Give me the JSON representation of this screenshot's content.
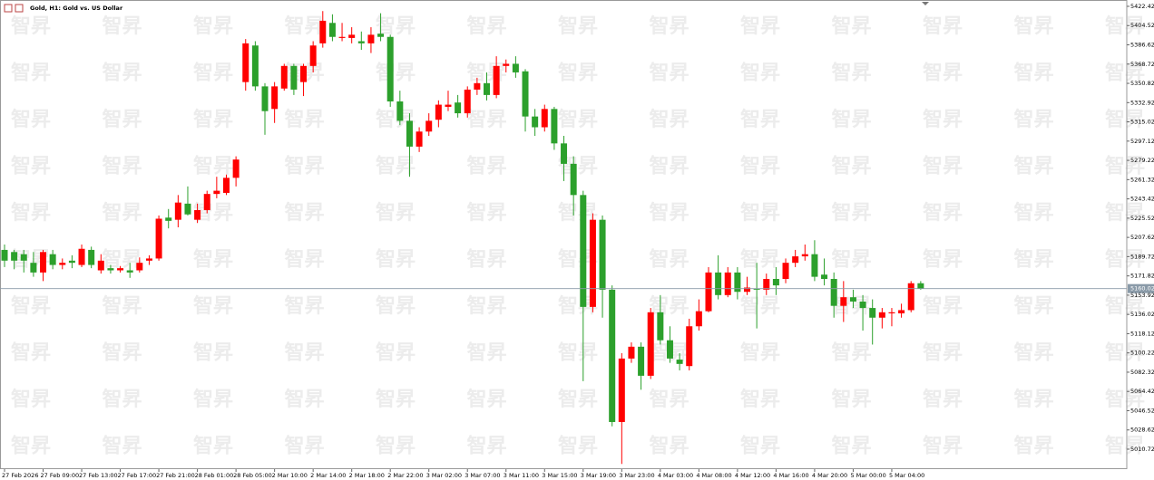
{
  "chart_data": {
    "type": "candlestick",
    "title": "Gold, H1:  Gold vs. US Dollar",
    "watermark": "智昇",
    "categories": [
      "27 Feb 2026",
      null,
      null,
      null,
      "27 Feb 09:00",
      null,
      null,
      null,
      "27 Feb 13:00",
      null,
      null,
      null,
      "27 Feb 17:00",
      null,
      null,
      null,
      "27 Feb 21:00",
      null,
      null,
      null,
      "28 Feb 01:00",
      null,
      null,
      null,
      "28 Feb 05:00",
      null,
      null,
      null,
      "2 Mar 10:00",
      null,
      null,
      null,
      "2 Mar 14:00",
      null,
      null,
      null,
      "2 Mar 18:00",
      null,
      null,
      null,
      "2 Mar 22:00",
      null,
      null,
      null,
      "3 Mar 02:00",
      null,
      null,
      null,
      "3 Mar 07:00",
      null,
      null,
      null,
      "3 Mar 11:00",
      null,
      null,
      null,
      "3 Mar 15:00",
      null,
      null,
      null,
      "3 Mar 19:00",
      null,
      null,
      null,
      "3 Mar 23:00",
      null,
      null,
      null,
      "4 Mar 03:00",
      null,
      null,
      null,
      "4 Mar 08:00",
      null,
      null,
      null,
      "4 Mar 12:00",
      null,
      null,
      null,
      "4 Mar 16:00",
      null,
      null,
      null,
      "4 Mar 20:00",
      null,
      null,
      null,
      "5 Mar 00:00",
      null,
      null,
      null,
      "5 Mar 04:00",
      null,
      null,
      null
    ],
    "open": [
      5196,
      5194,
      5192,
      5184,
      5175,
      5192,
      5182,
      5186,
      5182,
      5196,
      5177,
      5179,
      5177,
      5177,
      5177,
      5186,
      5188,
      5226,
      5224,
      5239,
      5224,
      5233,
      5248,
      5249,
      5263,
      5352,
      5386,
      5348,
      5327,
      5346,
      5367,
      5352,
      5367,
      5388,
      5407,
      5393,
      5393,
      5390,
      5388,
      5397,
      5394,
      5334,
      5316,
      5292,
      5306,
      5317,
      5329,
      5333,
      5323,
      5345,
      5351,
      5340,
      5367,
      5369,
      5362,
      5320,
      5310,
      5327,
      5295,
      5276,
      5247,
      5143,
      5224,
      5159,
      5036,
      5095,
      5106,
      5079,
      5138,
      5112,
      5094,
      5088,
      5125,
      5139,
      5175,
      5154,
      5175,
      5157,
      5160,
      5159,
      5169,
      5169,
      5184,
      5190,
      5192,
      5173,
      5169,
      5144,
      5152,
      5148,
      5142,
      5133,
      5137,
      5137,
      5140,
      5165
    ],
    "high": [
      5201,
      5196,
      5196,
      5194,
      5196,
      5196,
      5188,
      5191,
      5201,
      5199,
      5192,
      5182,
      5181,
      5184,
      5189,
      5191,
      5228,
      5234,
      5247,
      5255,
      5239,
      5251,
      5264,
      5266,
      5283,
      5392,
      5390,
      5351,
      5352,
      5369,
      5369,
      5369,
      5390,
      5418,
      5415,
      5407,
      5403,
      5399,
      5403,
      5416,
      5396,
      5344,
      5323,
      5310,
      5323,
      5335,
      5344,
      5340,
      5348,
      5356,
      5361,
      5376,
      5373,
      5376,
      5364,
      5327,
      5331,
      5329,
      5302,
      5283,
      5251,
      5230,
      5228,
      5163,
      5100,
      5110,
      5110,
      5142,
      5154,
      5125,
      5100,
      5132,
      5150,
      5180,
      5191,
      5180,
      5180,
      5171,
      5184,
      5174,
      5180,
      5188,
      5196,
      5201,
      5205,
      5188,
      5175,
      5167,
      5159,
      5154,
      5150,
      5142,
      5142,
      5146,
      5167,
      5167
    ],
    "low": [
      5180,
      5178,
      5175,
      5171,
      5167,
      5178,
      5178,
      5179,
      5180,
      5179,
      5174,
      5174,
      5175,
      5170,
      5175,
      5182,
      5186,
      5216,
      5217,
      5228,
      5221,
      5230,
      5244,
      5247,
      5255,
      5344,
      5344,
      5303,
      5314,
      5344,
      5340,
      5339,
      5361,
      5384,
      5390,
      5390,
      5388,
      5382,
      5379,
      5390,
      5329,
      5312,
      5264,
      5287,
      5302,
      5310,
      5325,
      5319,
      5319,
      5340,
      5335,
      5337,
      5361,
      5356,
      5306,
      5302,
      5306,
      5289,
      5260,
      5228,
      5074,
      5138,
      5133,
      5032,
      4997,
      5091,
      5066,
      5076,
      5108,
      5091,
      5084,
      5084,
      5121,
      5138,
      5150,
      5152,
      5150,
      5154,
      5123,
      5154,
      5154,
      5165,
      5180,
      5186,
      5167,
      5163,
      5133,
      5129,
      5142,
      5121,
      5108,
      5123,
      5125,
      5133,
      5138,
      5159
    ],
    "close": [
      5186,
      5186,
      5186,
      5175,
      5194,
      5182,
      5184,
      5184,
      5197,
      5182,
      5186,
      5177,
      5179,
      5175,
      5184,
      5188,
      5225,
      5223,
      5240,
      5229,
      5233,
      5248,
      5251,
      5263,
      5280,
      5388,
      5348,
      5325,
      5348,
      5367,
      5345,
      5367,
      5386,
      5409,
      5394,
      5394,
      5396,
      5388,
      5396,
      5394,
      5334,
      5316,
      5292,
      5306,
      5316,
      5331,
      5331,
      5323,
      5345,
      5351,
      5340,
      5367,
      5369,
      5361,
      5320,
      5310,
      5327,
      5295,
      5276,
      5247,
      5143,
      5224,
      5159,
      5036,
      5095,
      5106,
      5079,
      5138,
      5112,
      5095,
      5090,
      5125,
      5139,
      5175,
      5154,
      5175,
      5157,
      5161,
      5159,
      5169,
      5163,
      5184,
      5190,
      5192,
      5171,
      5169,
      5144,
      5152,
      5148,
      5142,
      5133,
      5138,
      5138,
      5140,
      5165,
      5160
    ],
    "up_color": "#ff0000",
    "down_color": "#2ca02c",
    "ylim": [
      4992.2,
      5428.3
    ],
    "yticks": [
      5422.42,
      5404.52,
      5386.62,
      5368.72,
      5350.82,
      5332.92,
      5315.02,
      5297.12,
      5279.22,
      5261.32,
      5243.42,
      5225.52,
      5207.62,
      5189.72,
      5171.82,
      5153.92,
      5136.02,
      5118.12,
      5100.22,
      5082.32,
      5064.42,
      5046.52,
      5028.62,
      5010.72
    ],
    "current_price": 5160.02
  }
}
